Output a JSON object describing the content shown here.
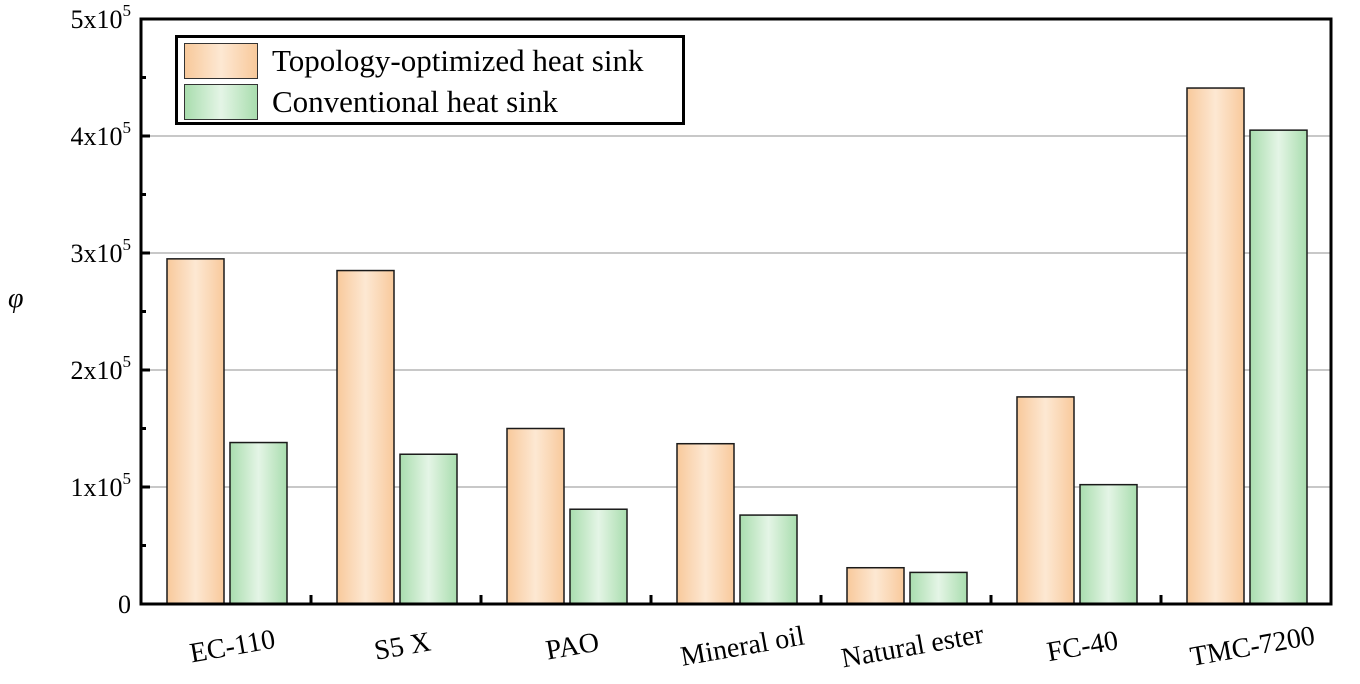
{
  "chart_data": {
    "type": "bar",
    "title": "",
    "xlabel": "",
    "ylabel": "φ",
    "ylim": [
      0,
      500000
    ],
    "yticks": [
      {
        "value": 0,
        "mant": "0",
        "exp": ""
      },
      {
        "value": 100000,
        "mant": "1x10",
        "exp": "5"
      },
      {
        "value": 200000,
        "mant": "2x10",
        "exp": "5"
      },
      {
        "value": 300000,
        "mant": "3x10",
        "exp": "5"
      },
      {
        "value": 400000,
        "mant": "4x10",
        "exp": "5"
      },
      {
        "value": 500000,
        "mant": "5x10",
        "exp": "5"
      }
    ],
    "grid": true,
    "legend_position": "top-left",
    "categories": [
      "EC-110",
      "S5 X",
      "PAO",
      "Mineral oil",
      "Natural ester",
      "FC-40",
      "TMC-7200"
    ],
    "series": [
      {
        "name": "Topology-optimized heat sink",
        "color": "#f8c99b",
        "highlight": "#fde8d3",
        "values": [
          295000,
          285000,
          150000,
          137000,
          31000,
          177000,
          441000
        ]
      },
      {
        "name": "Conventional heat sink",
        "color": "#a9ddae",
        "highlight": "#e4f5e6",
        "values": [
          138000,
          128000,
          81000,
          76000,
          27000,
          102000,
          405000
        ]
      }
    ]
  }
}
